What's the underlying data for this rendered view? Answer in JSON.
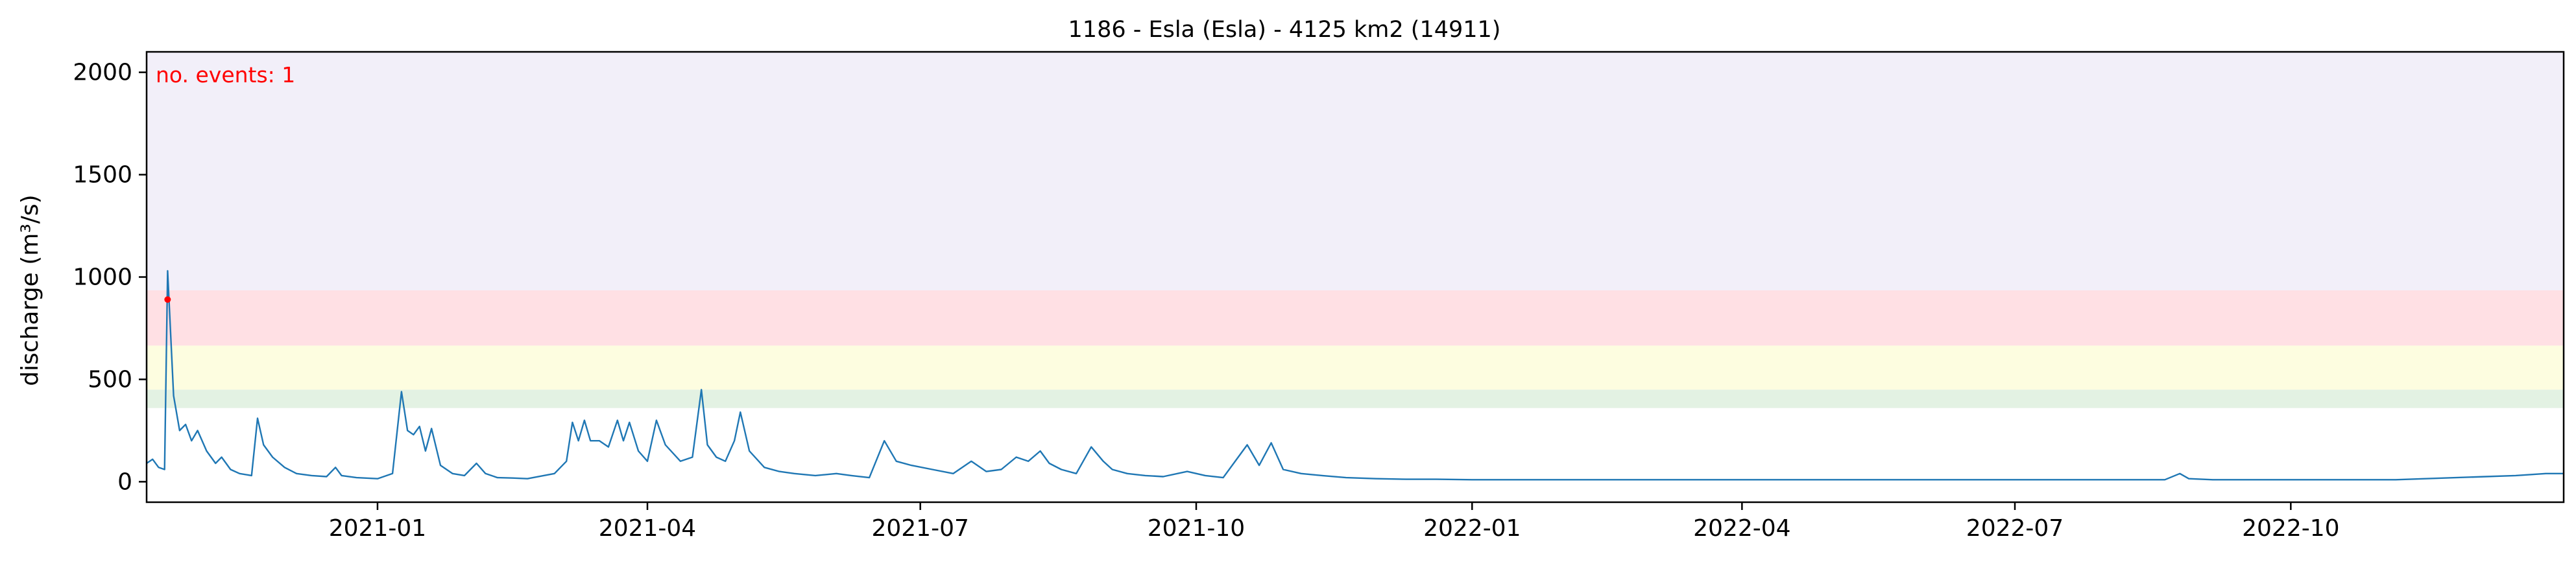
{
  "chart_data": {
    "type": "line",
    "title": "1186 - Esla (Esla) - 4125 km2 (14911)",
    "xlabel": "",
    "ylabel": "discharge (m³/s)",
    "xlim": [
      "2020-10-16",
      "2022-12-31"
    ],
    "ylim": [
      -100,
      2100
    ],
    "y_ticks": [
      0,
      500,
      1000,
      1500,
      2000
    ],
    "x_ticks": [
      "2021-01",
      "2021-04",
      "2021-07",
      "2021-10",
      "2022-01",
      "2022-04",
      "2022-07",
      "2022-10"
    ],
    "grid": false,
    "annotation": "no. events: 1",
    "threshold_bands": [
      {
        "from": 360,
        "to": 450,
        "color": "#e3f2e3"
      },
      {
        "from": 450,
        "to": 665,
        "color": "#fdfde0"
      },
      {
        "from": 665,
        "to": 935,
        "color": "#ffe0e4"
      },
      {
        "from": 935,
        "to": 2100,
        "color": "#f2eff9"
      }
    ],
    "events": [
      {
        "x": "2020-10-23",
        "y": 890
      }
    ],
    "series": [
      {
        "color": "#1f77b4",
        "points": [
          [
            "2020-10-16",
            90
          ],
          [
            "2020-10-18",
            110
          ],
          [
            "2020-10-20",
            70
          ],
          [
            "2020-10-22",
            60
          ],
          [
            "2020-10-23",
            1030
          ],
          [
            "2020-10-25",
            420
          ],
          [
            "2020-10-27",
            250
          ],
          [
            "2020-10-29",
            280
          ],
          [
            "2020-10-31",
            200
          ],
          [
            "2020-11-02",
            250
          ],
          [
            "2020-11-05",
            150
          ],
          [
            "2020-11-08",
            90
          ],
          [
            "2020-11-10",
            120
          ],
          [
            "2020-11-13",
            60
          ],
          [
            "2020-11-16",
            40
          ],
          [
            "2020-11-20",
            30
          ],
          [
            "2020-11-22",
            310
          ],
          [
            "2020-11-24",
            180
          ],
          [
            "2020-11-27",
            120
          ],
          [
            "2020-12-01",
            70
          ],
          [
            "2020-12-05",
            40
          ],
          [
            "2020-12-10",
            30
          ],
          [
            "2020-12-15",
            25
          ],
          [
            "2020-12-18",
            70
          ],
          [
            "2020-12-20",
            30
          ],
          [
            "2020-12-25",
            20
          ],
          [
            "2021-01-01",
            15
          ],
          [
            "2021-01-06",
            40
          ],
          [
            "2021-01-09",
            440
          ],
          [
            "2021-01-11",
            250
          ],
          [
            "2021-01-13",
            230
          ],
          [
            "2021-01-15",
            270
          ],
          [
            "2021-01-17",
            150
          ],
          [
            "2021-01-19",
            260
          ],
          [
            "2021-01-22",
            80
          ],
          [
            "2021-01-26",
            40
          ],
          [
            "2021-01-30",
            30
          ],
          [
            "2021-02-03",
            90
          ],
          [
            "2021-02-06",
            40
          ],
          [
            "2021-02-10",
            20
          ],
          [
            "2021-02-15",
            18
          ],
          [
            "2021-02-20",
            15
          ],
          [
            "2021-03-01",
            40
          ],
          [
            "2021-03-05",
            100
          ],
          [
            "2021-03-07",
            290
          ],
          [
            "2021-03-09",
            200
          ],
          [
            "2021-03-11",
            300
          ],
          [
            "2021-03-13",
            200
          ],
          [
            "2021-03-16",
            200
          ],
          [
            "2021-03-19",
            170
          ],
          [
            "2021-03-22",
            300
          ],
          [
            "2021-03-24",
            200
          ],
          [
            "2021-03-26",
            290
          ],
          [
            "2021-03-29",
            150
          ],
          [
            "2021-04-01",
            100
          ],
          [
            "2021-04-04",
            300
          ],
          [
            "2021-04-07",
            180
          ],
          [
            "2021-04-12",
            100
          ],
          [
            "2021-04-16",
            120
          ],
          [
            "2021-04-19",
            450
          ],
          [
            "2021-04-21",
            180
          ],
          [
            "2021-04-24",
            120
          ],
          [
            "2021-04-27",
            100
          ],
          [
            "2021-04-30",
            200
          ],
          [
            "2021-05-02",
            340
          ],
          [
            "2021-05-05",
            150
          ],
          [
            "2021-05-10",
            70
          ],
          [
            "2021-05-15",
            50
          ],
          [
            "2021-05-20",
            40
          ],
          [
            "2021-05-27",
            30
          ],
          [
            "2021-06-03",
            40
          ],
          [
            "2021-06-08",
            30
          ],
          [
            "2021-06-14",
            20
          ],
          [
            "2021-06-19",
            200
          ],
          [
            "2021-06-23",
            100
          ],
          [
            "2021-06-28",
            80
          ],
          [
            "2021-07-05",
            60
          ],
          [
            "2021-07-12",
            40
          ],
          [
            "2021-07-18",
            100
          ],
          [
            "2021-07-23",
            50
          ],
          [
            "2021-07-28",
            60
          ],
          [
            "2021-08-02",
            120
          ],
          [
            "2021-08-06",
            100
          ],
          [
            "2021-08-10",
            150
          ],
          [
            "2021-08-13",
            90
          ],
          [
            "2021-08-17",
            60
          ],
          [
            "2021-08-22",
            40
          ],
          [
            "2021-08-27",
            170
          ],
          [
            "2021-08-31",
            100
          ],
          [
            "2021-09-03",
            60
          ],
          [
            "2021-09-08",
            40
          ],
          [
            "2021-09-14",
            30
          ],
          [
            "2021-09-20",
            25
          ],
          [
            "2021-09-28",
            50
          ],
          [
            "2021-10-04",
            30
          ],
          [
            "2021-10-10",
            20
          ],
          [
            "2021-10-18",
            180
          ],
          [
            "2021-10-22",
            80
          ],
          [
            "2021-10-26",
            190
          ],
          [
            "2021-10-30",
            60
          ],
          [
            "2021-11-05",
            40
          ],
          [
            "2021-11-12",
            30
          ],
          [
            "2021-11-20",
            20
          ],
          [
            "2021-11-30",
            15
          ],
          [
            "2021-12-10",
            12
          ],
          [
            "2021-12-20",
            12
          ],
          [
            "2022-01-01",
            10
          ],
          [
            "2022-01-15",
            10
          ],
          [
            "2022-01-30",
            10
          ],
          [
            "2022-02-15",
            10
          ],
          [
            "2022-03-01",
            10
          ],
          [
            "2022-03-15",
            10
          ],
          [
            "2022-03-25",
            10
          ],
          [
            "2022-04-05",
            10
          ],
          [
            "2022-04-15",
            10
          ],
          [
            "2022-04-28",
            10
          ],
          [
            "2022-05-10",
            10
          ],
          [
            "2022-05-20",
            10
          ],
          [
            "2022-06-01",
            10
          ],
          [
            "2022-06-15",
            10
          ],
          [
            "2022-06-28",
            10
          ],
          [
            "2022-07-10",
            10
          ],
          [
            "2022-07-20",
            10
          ],
          [
            "2022-07-30",
            10
          ],
          [
            "2022-08-10",
            10
          ],
          [
            "2022-08-20",
            10
          ],
          [
            "2022-08-25",
            40
          ],
          [
            "2022-08-28",
            15
          ],
          [
            "2022-09-05",
            10
          ],
          [
            "2022-09-15",
            10
          ],
          [
            "2022-09-25",
            10
          ],
          [
            "2022-10-05",
            10
          ],
          [
            "2022-10-15",
            10
          ],
          [
            "2022-10-25",
            10
          ],
          [
            "2022-11-05",
            10
          ],
          [
            "2022-11-15",
            15
          ],
          [
            "2022-11-25",
            20
          ],
          [
            "2022-12-05",
            25
          ],
          [
            "2022-12-15",
            30
          ],
          [
            "2022-12-25",
            40
          ],
          [
            "2022-12-31",
            40
          ]
        ]
      }
    ]
  }
}
